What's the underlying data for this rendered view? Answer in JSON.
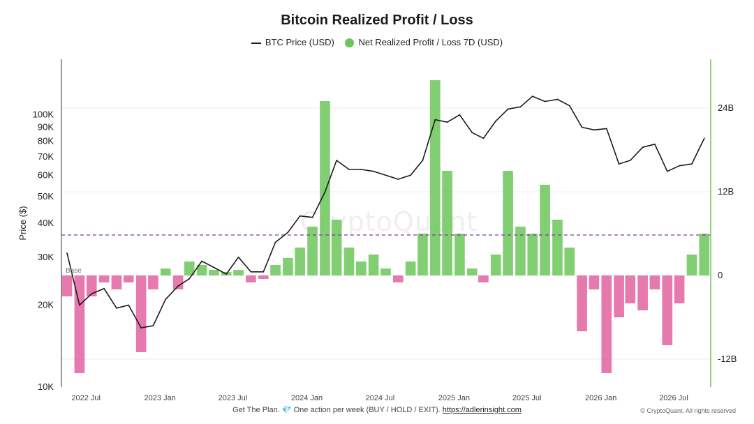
{
  "chart_data": {
    "type": "line",
    "title": "Bitcoin Realized Profit / Loss",
    "ylabel": "Price ($)",
    "y_scale": "log",
    "ylim": [
      10000,
      160000
    ],
    "y2lim": [
      -16,
      31
    ],
    "y2_unit": "B",
    "legend_placement": "top",
    "grid": true,
    "x_ticks": [
      "2022 Jul",
      "2023 Jan",
      "2023 Jul",
      "2024 Jan",
      "2024 Jul",
      "2025 Jan",
      "2025 Jul",
      "2026 Jan",
      "2026 Jul"
    ],
    "y_ticks": [
      {
        "value": 10000,
        "label": "10K"
      },
      {
        "value": 20000,
        "label": "20K"
      },
      {
        "value": 30000,
        "label": "30K"
      },
      {
        "value": 40000,
        "label": "40K"
      },
      {
        "value": 50000,
        "label": "50K"
      },
      {
        "value": 60000,
        "label": "60K"
      },
      {
        "value": 70000,
        "label": "70K"
      },
      {
        "value": 80000,
        "label": "80K"
      },
      {
        "value": 90000,
        "label": "90K"
      },
      {
        "value": 100000,
        "label": "100K"
      }
    ],
    "y2_ticks": [
      {
        "value": 24,
        "label": "24B"
      },
      {
        "value": 12,
        "label": "12B"
      },
      {
        "value": 0,
        "label": "0"
      },
      {
        "value": -12,
        "label": "-12B"
      }
    ],
    "series": [
      {
        "name": "BTC Price (USD)",
        "type": "line",
        "axis": "left",
        "color": "#1a1a1a",
        "x": [
          "2022-05",
          "2022-06",
          "2022-07",
          "2022-08",
          "2022-09",
          "2022-10",
          "2022-11",
          "2022-12",
          "2023-01",
          "2023-02",
          "2023-03",
          "2023-04",
          "2023-05",
          "2023-06",
          "2023-07",
          "2023-08",
          "2023-09",
          "2023-10",
          "2023-11",
          "2023-12",
          "2024-01",
          "2024-02",
          "2024-03",
          "2024-04",
          "2024-05",
          "2024-06",
          "2024-07",
          "2024-08",
          "2024-09",
          "2024-10",
          "2024-11",
          "2024-12",
          "2025-01",
          "2025-02",
          "2025-03",
          "2025-04",
          "2025-05",
          "2025-06",
          "2025-07",
          "2025-08",
          "2025-09",
          "2025-10",
          "2025-11",
          "2025-12",
          "2026-01",
          "2026-02",
          "2026-03",
          "2026-04",
          "2026-05",
          "2026-06",
          "2026-07",
          "2026-08",
          "2026-09"
        ],
        "values": [
          31000,
          20000,
          22000,
          23000,
          19500,
          20000,
          16500,
          16800,
          21000,
          23500,
          25000,
          29000,
          27500,
          26000,
          30000,
          26500,
          26500,
          34000,
          37000,
          42500,
          42000,
          52000,
          68000,
          63000,
          63000,
          62000,
          60000,
          58000,
          60000,
          68000,
          96000,
          94000,
          100000,
          86000,
          82000,
          95000,
          105000,
          107000,
          117000,
          112000,
          114000,
          108000,
          90000,
          88000,
          89000,
          66000,
          68000,
          76000,
          78000,
          62000,
          65000,
          66000,
          82000
        ]
      },
      {
        "name": "Net Realized Profit / Loss 7D (USD)",
        "type": "bar",
        "axis": "right",
        "color": "#6cc65a",
        "negative_color": "#e2619f",
        "x": [
          "2022-05",
          "2022-06",
          "2022-07",
          "2022-08",
          "2022-09",
          "2022-10",
          "2022-11",
          "2022-12",
          "2023-01",
          "2023-02",
          "2023-03",
          "2023-04",
          "2023-05",
          "2023-06",
          "2023-07",
          "2023-08",
          "2023-09",
          "2023-10",
          "2023-11",
          "2023-12",
          "2024-01",
          "2024-02",
          "2024-03",
          "2024-04",
          "2024-05",
          "2024-06",
          "2024-07",
          "2024-08",
          "2024-09",
          "2024-10",
          "2024-11",
          "2024-12",
          "2025-01",
          "2025-02",
          "2025-03",
          "2025-04",
          "2025-05",
          "2025-06",
          "2025-07",
          "2025-08",
          "2025-09",
          "2025-10",
          "2025-11",
          "2025-12",
          "2026-01",
          "2026-02",
          "2026-03",
          "2026-04",
          "2026-05",
          "2026-06",
          "2026-07",
          "2026-08",
          "2026-09"
        ],
        "values": [
          -3,
          -14,
          -3,
          -1,
          -2,
          -1,
          -11,
          -2,
          1,
          -2,
          2,
          1.5,
          0.8,
          0.5,
          0.8,
          -1,
          -0.5,
          1.5,
          2.5,
          4,
          7,
          25,
          8,
          4,
          2,
          3,
          1,
          -1,
          2,
          6,
          28,
          15,
          6,
          1,
          -1,
          3,
          15,
          7,
          6,
          13,
          8,
          4,
          -8,
          -2,
          -14,
          -6,
          -4,
          -5,
          -2,
          -10,
          -4,
          3,
          6
        ]
      }
    ],
    "reference_lines": [
      {
        "axis": "right",
        "value": 5.8,
        "style": "dashed",
        "color": "#7a3a9a"
      }
    ],
    "annotations": [
      {
        "text": "Base",
        "x": "2022-05",
        "y2": 0
      }
    ]
  },
  "watermark": "CryptoQuant",
  "footer": {
    "prefix": "Get The Plan.",
    "gem": "💎",
    "middle": "One action per week (BUY / HOLD / EXIT).",
    "link": "https://adlerinsight.com"
  },
  "copyright": "© CryptoQuant. All rights reserved"
}
